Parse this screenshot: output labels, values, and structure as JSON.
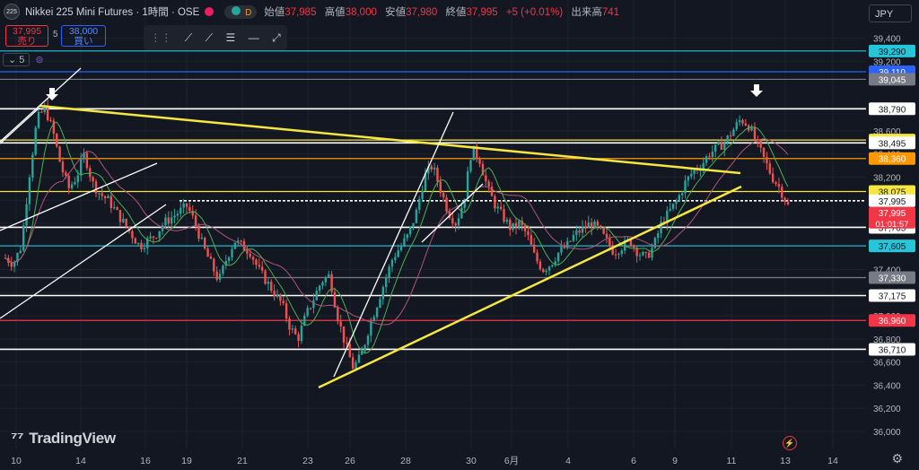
{
  "header": {
    "logo_text": "225",
    "symbol": "Nikkei 225 Mini Futures · 1時間 · OSE",
    "open_label": "始値",
    "open": "37,985",
    "high_label": "高値",
    "high": "38,000",
    "low_label": "安値",
    "low": "37,980",
    "close_label": "終値",
    "close": "37,995",
    "change": "+5 (+0.01%)",
    "volume_label": "出来高",
    "volume": "741",
    "d_badge": "D"
  },
  "trade": {
    "sell_price": "37,995",
    "sell_label": "売り",
    "spread": "5",
    "buy_price": "38,000",
    "buy_label": "買い"
  },
  "indicator": {
    "count": "5"
  },
  "currency": "JPY",
  "footer": {
    "brand": "TradingView"
  },
  "colors": {
    "background": "#131722",
    "up": "#26a69a",
    "down": "#ef5350",
    "trendline_yellow": "#f5e642",
    "ma_green": "#4caf50",
    "ma_pink": "#b0557a"
  },
  "chart_data": {
    "type": "candlestick",
    "ylim": [
      36000,
      39400
    ],
    "y_ticks": [
      39400,
      39200,
      38800,
      38600,
      38400,
      38200,
      38000,
      37800,
      37600,
      37400,
      37200,
      37000,
      36800,
      36600,
      36400,
      36200,
      36000
    ],
    "x_ticks": [
      "10",
      "14",
      "16",
      "19",
      "21",
      "23",
      "26",
      "28",
      "30",
      "6月",
      "4",
      "6",
      "9",
      "11",
      "13",
      "14"
    ],
    "current_price": {
      "value": 37995,
      "label": "37,995",
      "countdown": "01:01:57"
    },
    "horizontal_levels": [
      {
        "value": 39290,
        "label": "39,290",
        "color": "#26c6da"
      },
      {
        "value": 39110,
        "label": "39,110",
        "color": "#2962ff"
      },
      {
        "value": 39045,
        "label": "39,045",
        "color": "#787b86"
      },
      {
        "value": 38790,
        "label": "38,790",
        "color": "#ffffff"
      },
      {
        "value": 38520,
        "label": "38,520",
        "color": "#f5e642"
      },
      {
        "value": 38495,
        "label": "38,495",
        "color": "#ffffff"
      },
      {
        "value": 38360,
        "label": "38,360",
        "color": "#ff9800"
      },
      {
        "value": 38075,
        "label": "38,075",
        "color": "#f5e642"
      },
      {
        "value": 37995,
        "label": "37,995",
        "color": "#ffffff"
      },
      {
        "value": 37765,
        "label": "37,765",
        "color": "#ffffff"
      },
      {
        "value": 37605,
        "label": "37,605",
        "color": "#26c6da"
      },
      {
        "value": 37330,
        "label": "37,330",
        "color": "#787b86"
      },
      {
        "value": 37175,
        "label": "37,175",
        "color": "#ffffff"
      },
      {
        "value": 36960,
        "label": "36,960",
        "color": "#f23645"
      },
      {
        "value": 36710,
        "label": "36,710",
        "color": "#ffffff"
      }
    ],
    "price_path": [
      37500,
      37450,
      37600,
      38200,
      38700,
      38800,
      38600,
      38300,
      38100,
      38200,
      38400,
      38150,
      38050,
      38000,
      37900,
      37800,
      37700,
      37600,
      37650,
      37700,
      37800,
      37850,
      37900,
      37950,
      37800,
      37600,
      37450,
      37300,
      37500,
      37650,
      37600,
      37550,
      37400,
      37300,
      37200,
      37100,
      36900,
      36800,
      37000,
      37150,
      37300,
      37350,
      37000,
      36750,
      36550,
      36650,
      36900,
      37100,
      37300,
      37500,
      37600,
      37700,
      37900,
      38200,
      38300,
      38100,
      37900,
      37800,
      38000,
      38450,
      38350,
      38100,
      37950,
      37850,
      37750,
      37800,
      37700,
      37500,
      37400,
      37450,
      37550,
      37600,
      37700,
      37750,
      37800,
      37750,
      37650,
      37550,
      37600,
      37650,
      37550,
      37500,
      37600,
      37800,
      37900,
      38000,
      38150,
      38250,
      38300,
      38400,
      38450,
      38500,
      38600,
      38700,
      38650,
      38500,
      38350,
      38200,
      38100,
      37950
    ]
  }
}
